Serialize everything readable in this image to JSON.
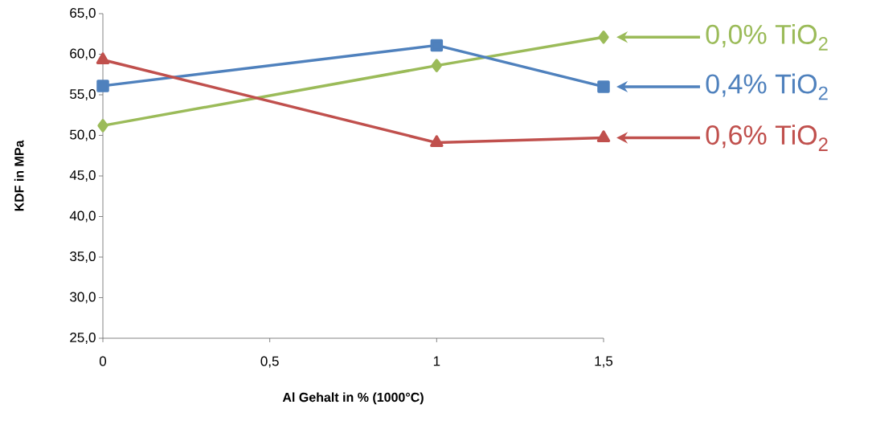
{
  "chart_data": {
    "type": "line",
    "xlabel": "Al Gehalt in % (1000°C)",
    "ylabel": "KDF in MPa",
    "x": [
      0,
      1,
      1.5
    ],
    "series": [
      {
        "name": "0,0% TiO$_{2}$",
        "color": "#9bbb59",
        "marker": "diamond",
        "values": [
          51.2,
          58.6,
          62.1
        ]
      },
      {
        "name": "0,4% TiO$_{2}$",
        "color": "#4f81bd",
        "marker": "square",
        "values": [
          56.1,
          61.1,
          56.0
        ]
      },
      {
        "name": "0,6% TiO$_{2}$",
        "color": "#c0504d",
        "marker": "triangle",
        "values": [
          59.3,
          49.1,
          49.7
        ]
      }
    ],
    "xlim": [
      0,
      1.5
    ],
    "xticks": [
      0,
      {
        "value": 0.5,
        "label": "0,5"
      },
      1,
      {
        "value": 1.5,
        "label": "1,5"
      }
    ],
    "ylim": [
      25,
      65
    ],
    "yticks": [
      {
        "value": 25,
        "label": "25,0"
      },
      {
        "value": 30,
        "label": "30,0"
      },
      {
        "value": 35,
        "label": "35,0"
      },
      {
        "value": 40,
        "label": "40,0"
      },
      {
        "value": 45,
        "label": "45,0"
      },
      {
        "value": 50,
        "label": "50,0"
      },
      {
        "value": 55,
        "label": "55,0"
      },
      {
        "value": 60,
        "label": "60,0"
      },
      {
        "value": 65,
        "label": "65,0"
      }
    ],
    "grid": false,
    "legend": "right"
  }
}
